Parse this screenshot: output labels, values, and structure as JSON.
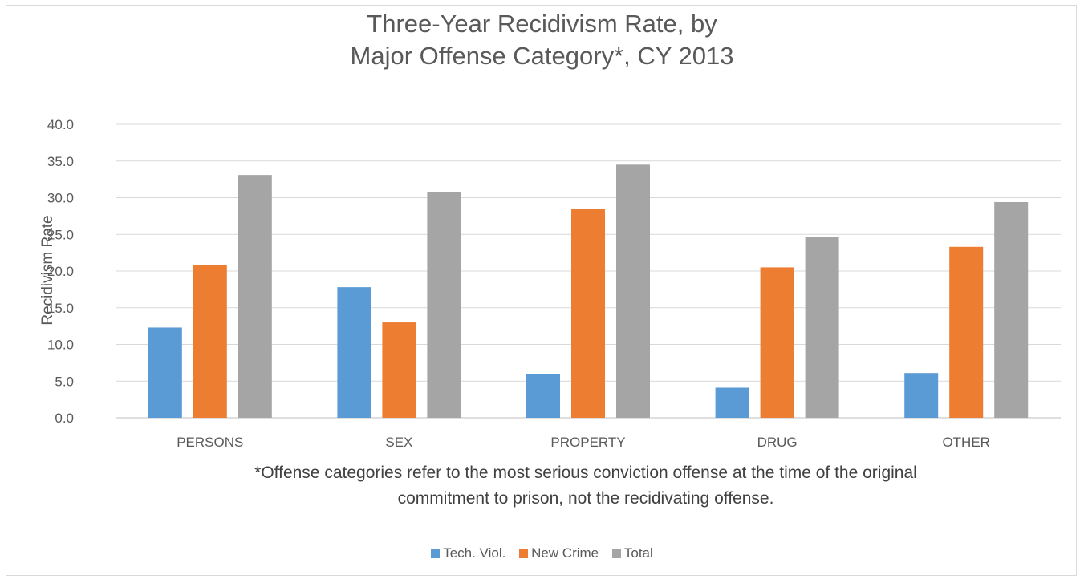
{
  "chart_data": {
    "type": "bar",
    "title_lines": [
      "Three-Year Recidivism Rate, by",
      "Major Offense Category*, CY 2013"
    ],
    "ylabel": "Recidivism Rate",
    "xlabel": "",
    "categories": [
      "PERSONS",
      "SEX",
      "PROPERTY",
      "DRUG",
      "OTHER"
    ],
    "series": [
      {
        "name": "Tech. Viol.",
        "color": "#5b9bd5",
        "values": [
          12.3,
          17.8,
          6.0,
          4.1,
          6.1
        ]
      },
      {
        "name": "New Crime",
        "color": "#ed7d31",
        "values": [
          20.8,
          13.0,
          28.5,
          20.5,
          23.3
        ]
      },
      {
        "name": "Total",
        "color": "#a5a5a5",
        "values": [
          33.1,
          30.8,
          34.5,
          24.6,
          29.4
        ]
      }
    ],
    "ylim": [
      0,
      40
    ],
    "yticks": [
      "0.0",
      "5.0",
      "10.0",
      "15.0",
      "20.0",
      "25.0",
      "30.0",
      "35.0",
      "40.0"
    ],
    "grid": true,
    "legend_position": "bottom",
    "footnote_lines": [
      "*Offense categories refer to the most serious conviction offense at the time of the original",
      "commitment to prison, not the recidivating offense."
    ]
  }
}
